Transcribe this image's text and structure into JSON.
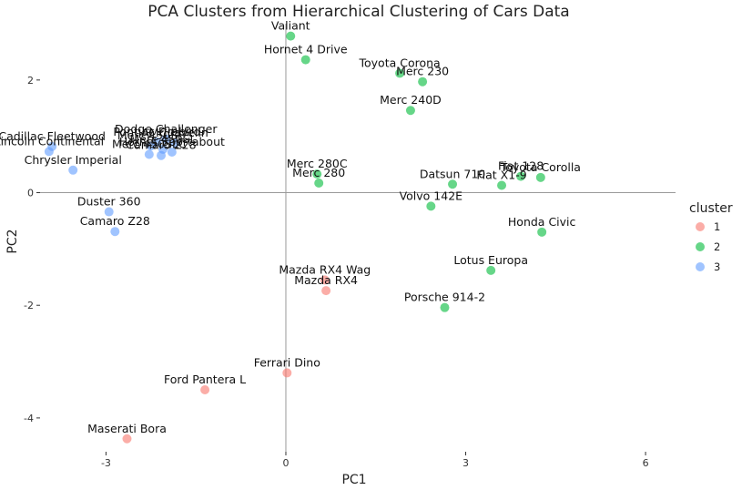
{
  "chart_data": {
    "type": "scatter",
    "title": "PCA Clusters from Hierarchical Clustering of Cars Data",
    "xlabel": "PC1",
    "ylabel": "PC2",
    "xlim": [
      -4.1,
      6.5
    ],
    "ylim": [
      -4.6,
      3.0
    ],
    "x_ticks": [
      -3,
      0,
      3,
      6
    ],
    "y_ticks": [
      -4,
      -2,
      0,
      2
    ],
    "x_tick_labels": [
      "-3",
      "0",
      "3",
      "6"
    ],
    "y_tick_labels": [
      "-4",
      "-2",
      "0",
      "2"
    ],
    "grid": false,
    "reference_lines": {
      "x": 0,
      "y": 0
    },
    "legend": {
      "title": "cluster",
      "position": "right",
      "entries": [
        {
          "label": "1",
          "color": "#F8766D"
        },
        {
          "label": "2",
          "color": "#00BA38"
        },
        {
          "label": "3",
          "color": "#619CFF"
        }
      ]
    },
    "series": [
      {
        "cluster": "1",
        "color": "#F8766D",
        "points": [
          {
            "label": "Mazda RX4 Wag",
            "x": 0.65,
            "y": -1.55
          },
          {
            "label": "Mazda RX4",
            "x": 0.67,
            "y": -1.74
          },
          {
            "label": "Ferrari Dino",
            "x": 0.02,
            "y": -3.2
          },
          {
            "label": "Ford Pantera L",
            "x": -1.35,
            "y": -3.5
          },
          {
            "label": "Maserati Bora",
            "x": -2.65,
            "y": -4.37
          }
        ]
      },
      {
        "cluster": "2",
        "color": "#00BA38",
        "points": [
          {
            "label": "Valiant",
            "x": 0.08,
            "y": 2.78
          },
          {
            "label": "Hornet 4 Drive",
            "x": 0.33,
            "y": 2.36
          },
          {
            "label": "Toyota Corona",
            "x": 1.9,
            "y": 2.12
          },
          {
            "label": "Merc 230",
            "x": 2.28,
            "y": 1.97
          },
          {
            "label": "Merc 240D",
            "x": 2.08,
            "y": 1.46
          },
          {
            "label": "Merc 280C",
            "x": 0.52,
            "y": 0.33
          },
          {
            "label": "Merc 280",
            "x": 0.55,
            "y": 0.17
          },
          {
            "label": "Datsun 710",
            "x": 2.78,
            "y": 0.15
          },
          {
            "label": "Fiat 128",
            "x": 3.92,
            "y": 0.29
          },
          {
            "label": "Toyota Corolla",
            "x": 4.25,
            "y": 0.27
          },
          {
            "label": "Fiat X1-9",
            "x": 3.6,
            "y": 0.13
          },
          {
            "label": "Volvo 142E",
            "x": 2.42,
            "y": -0.24
          },
          {
            "label": "Honda Civic",
            "x": 4.27,
            "y": -0.7
          },
          {
            "label": "Lotus Europa",
            "x": 3.42,
            "y": -1.38
          },
          {
            "label": "Porsche 914-2",
            "x": 2.65,
            "y": -2.04
          }
        ]
      },
      {
        "cluster": "3",
        "color": "#619CFF",
        "points": [
          {
            "label": "Dodge Challenger",
            "x": -2.0,
            "y": 0.95
          },
          {
            "label": "Pontiac Firebird",
            "x": -2.15,
            "y": 0.9
          },
          {
            "label": "AMC Javelin",
            "x": -1.85,
            "y": 0.88
          },
          {
            "label": "Chrysler Imperial",
            "x": -3.55,
            "y": 0.4
          },
          {
            "label": "Cadillac Fleetwood",
            "x": -3.9,
            "y": 0.82
          },
          {
            "label": "Lincoln Continental",
            "x": -3.95,
            "y": 0.73
          },
          {
            "label": "Merc 450SE",
            "x": -2.25,
            "y": 0.83
          },
          {
            "label": "Merc 450SL",
            "x": -2.05,
            "y": 0.77
          },
          {
            "label": "Merc 450SLC",
            "x": -2.28,
            "y": 0.68
          },
          {
            "label": "Hornet Sportabout",
            "x": -1.9,
            "y": 0.72
          },
          {
            "label": "Camaro Z28",
            "x": -2.08,
            "y": 0.66
          },
          {
            "label": "Duster 360",
            "x": -2.95,
            "y": -0.34
          },
          {
            "label": "Camaro Z28",
            "x": -2.85,
            "y": -0.69
          }
        ]
      }
    ]
  }
}
